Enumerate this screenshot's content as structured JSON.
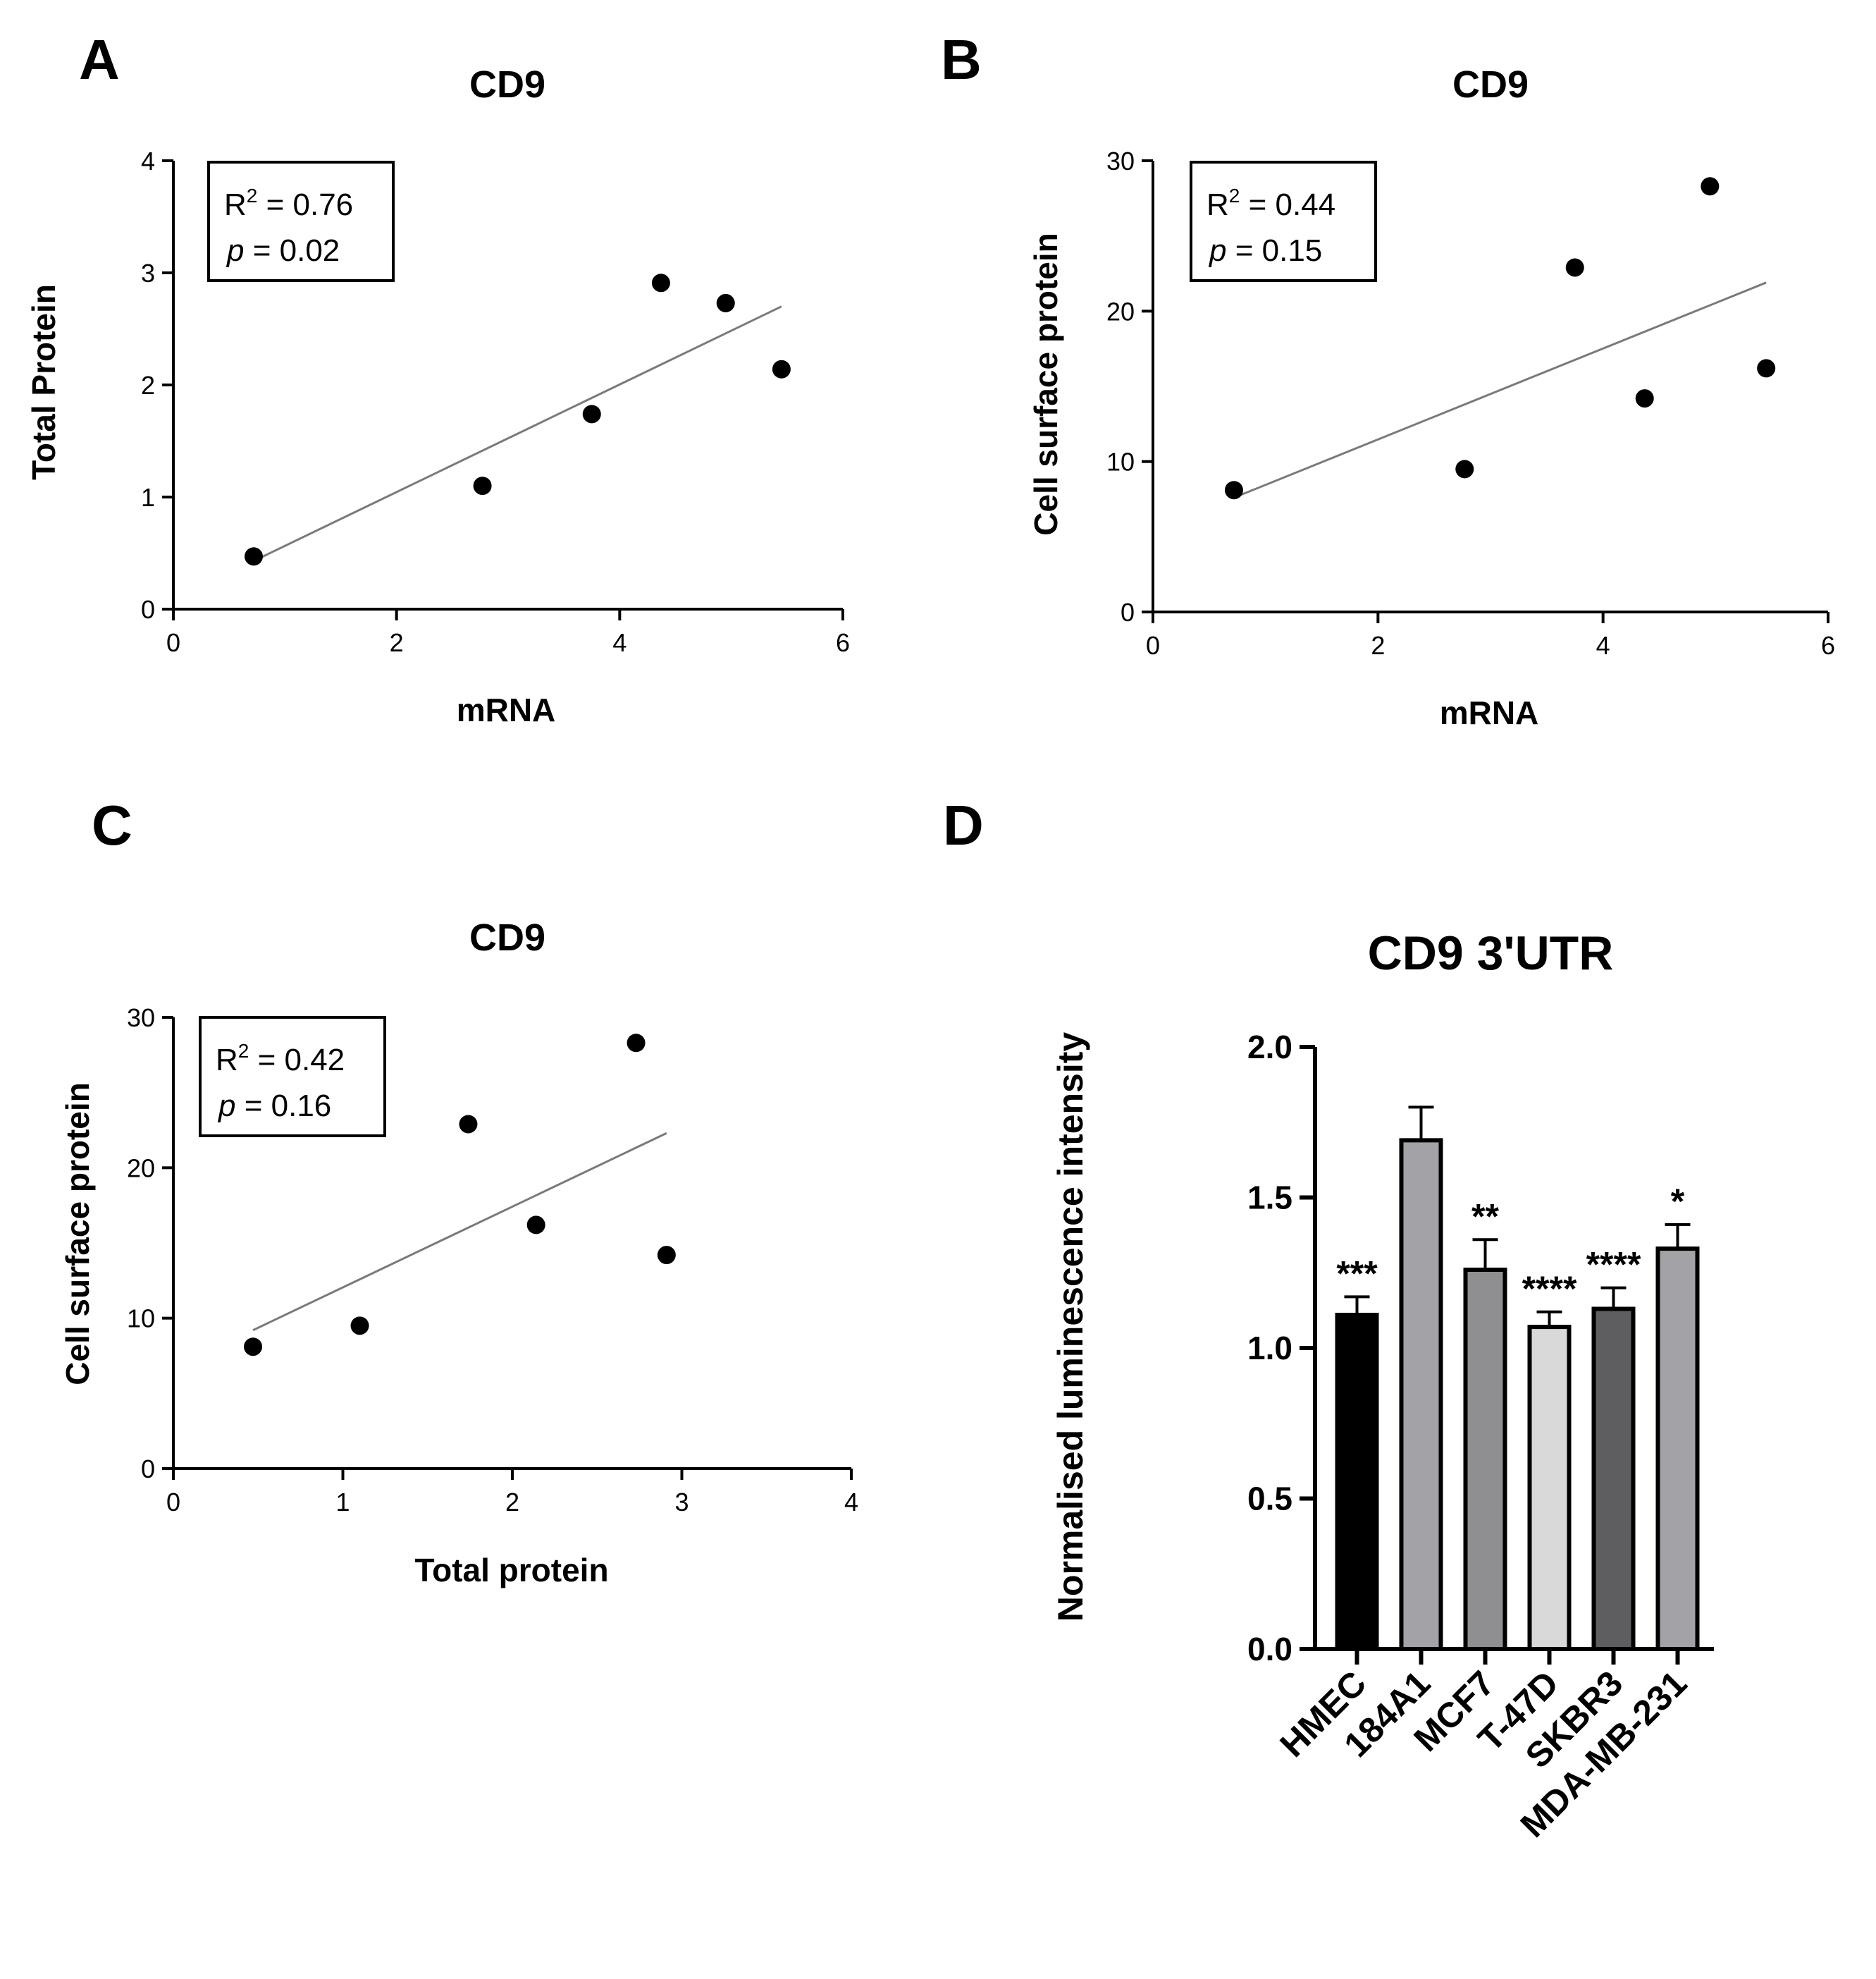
{
  "figure": {
    "panels": [
      {
        "letter": "A"
      },
      {
        "letter": "B"
      },
      {
        "letter": "C"
      },
      {
        "letter": "D"
      }
    ]
  },
  "chart_data": [
    {
      "type": "scatter",
      "panel": "A",
      "title": "CD9",
      "xlabel": "mRNA",
      "ylabel": "Total Protein",
      "xlim": [
        0,
        6
      ],
      "ylim": [
        0,
        4
      ],
      "xticks": [
        0,
        2,
        4,
        6
      ],
      "yticks": [
        0,
        1,
        2,
        3,
        4
      ],
      "points": [
        {
          "x": 0.72,
          "y": 0.47
        },
        {
          "x": 2.77,
          "y": 1.1
        },
        {
          "x": 3.75,
          "y": 1.74
        },
        {
          "x": 4.37,
          "y": 2.91
        },
        {
          "x": 4.95,
          "y": 2.73
        },
        {
          "x": 5.45,
          "y": 2.14
        }
      ],
      "fit_line": {
        "x": [
          0.72,
          5.45
        ],
        "y": [
          0.43,
          2.7
        ]
      },
      "stats": {
        "r2_prefix": "R",
        "r2_sup": "2",
        "r2_value": " = 0.76",
        "p_symbol": "p",
        "p_value": " = 0.02"
      }
    },
    {
      "type": "scatter",
      "panel": "B",
      "title": "CD9",
      "xlabel": "mRNA",
      "ylabel": "Cell surface protein",
      "xlim": [
        0,
        6
      ],
      "ylim": [
        0,
        30
      ],
      "xticks": [
        0,
        2,
        4,
        6
      ],
      "yticks": [
        0,
        10,
        20,
        30
      ],
      "points": [
        {
          "x": 0.72,
          "y": 8.1
        },
        {
          "x": 2.77,
          "y": 9.5
        },
        {
          "x": 3.75,
          "y": 22.9
        },
        {
          "x": 4.37,
          "y": 14.2
        },
        {
          "x": 4.95,
          "y": 28.3
        },
        {
          "x": 5.45,
          "y": 16.2
        }
      ],
      "fit_line": {
        "x": [
          0.72,
          5.45
        ],
        "y": [
          7.6,
          21.9
        ]
      },
      "stats": {
        "r2_prefix": "R",
        "r2_sup": "2",
        "r2_value": " = 0.44",
        "p_symbol": "p",
        "p_value": " = 0.15"
      }
    },
    {
      "type": "scatter",
      "panel": "C",
      "title": "CD9",
      "xlabel": "Total protein",
      "ylabel": "Cell surface protein",
      "xlim": [
        0,
        4
      ],
      "ylim": [
        0,
        30
      ],
      "xticks": [
        0,
        1,
        2,
        3,
        4
      ],
      "yticks": [
        0,
        10,
        20,
        30
      ],
      "points": [
        {
          "x": 0.47,
          "y": 8.1
        },
        {
          "x": 1.1,
          "y": 9.5
        },
        {
          "x": 1.74,
          "y": 22.9
        },
        {
          "x": 2.14,
          "y": 16.2
        },
        {
          "x": 2.73,
          "y": 28.3
        },
        {
          "x": 2.91,
          "y": 14.2
        }
      ],
      "fit_line": {
        "x": [
          0.47,
          2.91
        ],
        "y": [
          9.2,
          22.3
        ]
      },
      "stats": {
        "r2_prefix": "R",
        "r2_sup": "2",
        "r2_value": " = 0.42",
        "p_symbol": "p",
        "p_value": " = 0.16"
      }
    },
    {
      "type": "bar",
      "panel": "D",
      "title": "CD9 3'UTR",
      "xlabel": "",
      "ylabel": "Normalised luminescence intensity",
      "ylim": [
        0,
        2.0
      ],
      "yticks": [
        "0.0",
        "0.5",
        "1.0",
        "1.5",
        "2.0"
      ],
      "categories": [
        "HMEC",
        "184A1",
        "MCF7",
        "T-47D",
        "SKBR3",
        "MDA-MB-231"
      ],
      "values": [
        1.11,
        1.69,
        1.26,
        1.07,
        1.13,
        1.33
      ],
      "errors": [
        0.06,
        0.11,
        0.1,
        0.05,
        0.07,
        0.08
      ],
      "significance": [
        "***",
        "",
        "**",
        "****",
        "****",
        "*"
      ],
      "colors": [
        "#000000",
        "#a3a3a7",
        "#8f8f92",
        "#d9d9d9",
        "#5e5e60",
        "#a3a3a7"
      ]
    }
  ]
}
